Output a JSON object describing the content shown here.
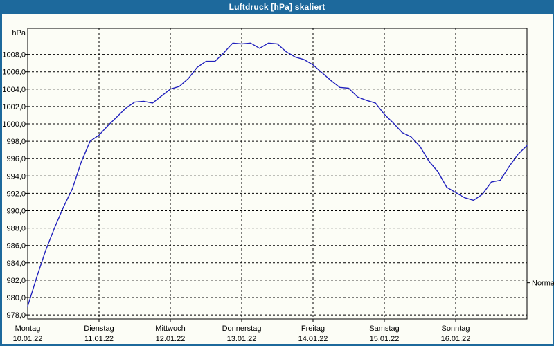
{
  "window": {
    "title": "Luftdruck [hPa] skaliert"
  },
  "colors": {
    "titlebar": "#1d699c",
    "window_border": "#1d699c",
    "background": "#fcfdf6",
    "grid": "#000000",
    "curve": "#2121bd",
    "text": "#000000",
    "title_text": "#ffffff"
  },
  "y_axis": {
    "unit_label": "hPa",
    "labels": [
      "1008,0",
      "1006,0",
      "1004,0",
      "1002,0",
      "1000,0",
      "998,0",
      "996,0",
      "994,0",
      "992,0",
      "990,0",
      "988,0",
      "986,0",
      "984,0",
      "982,0",
      "980,0",
      "978,0"
    ],
    "label_values": [
      1008,
      1006,
      1004,
      1002,
      1000,
      998,
      996,
      994,
      992,
      990,
      988,
      986,
      984,
      982,
      980,
      978
    ],
    "gridline_max": 1010,
    "gridline_min": 978,
    "gridline_step": 2
  },
  "x_axis": {
    "days": [
      {
        "name": "Montag",
        "date": "10.01.22"
      },
      {
        "name": "Dienstag",
        "date": "11.01.22"
      },
      {
        "name": "Mittwoch",
        "date": "12.01.22"
      },
      {
        "name": "Donnerstag",
        "date": "13.01.22"
      },
      {
        "name": "Freitag",
        "date": "14.01.22"
      },
      {
        "name": "Samstag",
        "date": "15.01.22"
      },
      {
        "name": "Sonntag",
        "date": "16.01.22"
      }
    ]
  },
  "normal_marker": {
    "label": "Normal",
    "value_hpa": 981.7
  },
  "chart_data": {
    "type": "line",
    "title": "Luftdruck [hPa] skaliert",
    "ylabel": "hPa",
    "ylim": [
      977.5,
      1011
    ],
    "grid": true,
    "legend": "none",
    "x_start_day": "Montag 10.01.22",
    "x_end_day": "Sonntag 16.01.22",
    "sample_interval_hours": 3,
    "x_hours": [
      0,
      3,
      6,
      9,
      12,
      15,
      18,
      21,
      24,
      27,
      30,
      33,
      36,
      39,
      42,
      45,
      48,
      51,
      54,
      57,
      60,
      63,
      66,
      69,
      72,
      75,
      78,
      81,
      84,
      87,
      90,
      93,
      96,
      99,
      102,
      105,
      108,
      111,
      114,
      117,
      120,
      123,
      126,
      129,
      132,
      135,
      138,
      141,
      144,
      147,
      150,
      153,
      156,
      159,
      162,
      165,
      168
    ],
    "series": [
      {
        "name": "Luftdruck",
        "color": "#2121bd",
        "values": [
          979.0,
          982.3,
          985.4,
          988.0,
          990.4,
          992.5,
          995.6,
          998.0,
          998.7,
          999.8,
          1000.8,
          1001.8,
          1002.5,
          1002.6,
          1002.4,
          1003.2,
          1004.0,
          1004.3,
          1005.2,
          1006.5,
          1007.2,
          1007.2,
          1008.2,
          1009.3,
          1009.2,
          1009.3,
          1008.7,
          1009.3,
          1009.2,
          1008.3,
          1007.7,
          1007.4,
          1006.8,
          1005.9,
          1005.0,
          1004.2,
          1004.1,
          1003.1,
          1002.7,
          1002.4,
          1001.1,
          1000.1,
          999.0,
          998.5,
          997.4,
          995.7,
          994.5,
          992.7,
          992.1,
          991.5,
          991.2,
          991.9,
          993.3,
          993.5,
          995.1,
          996.5,
          997.5
        ]
      }
    ],
    "annotations": [
      {
        "label": "Normal",
        "y": 981.7,
        "side": "right"
      }
    ]
  }
}
